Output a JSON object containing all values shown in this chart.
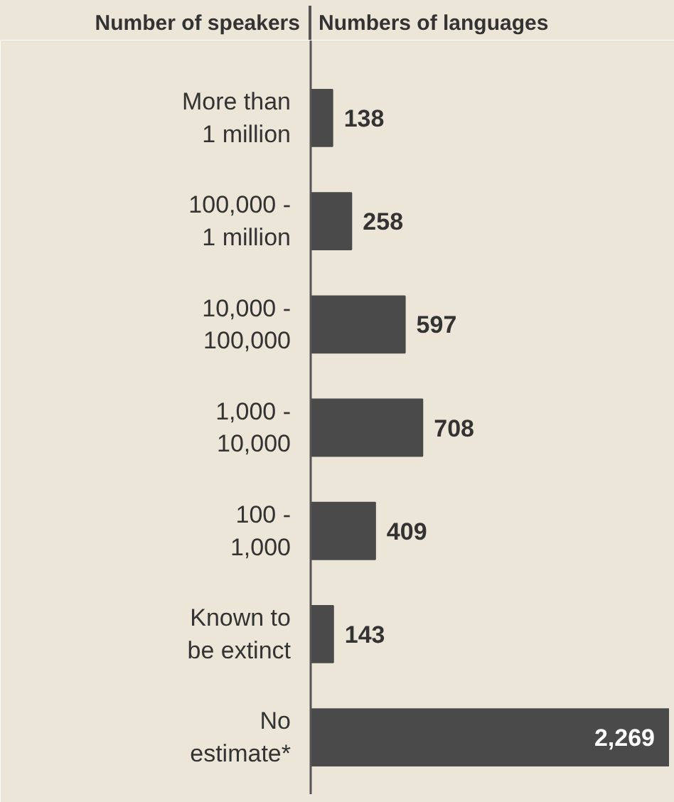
{
  "chart_data": {
    "type": "bar",
    "orientation": "horizontal",
    "ylabel": "Number of speakers",
    "xlabel": "Numbers of languages",
    "categories": [
      "More than\n1 million",
      "100,000 -\n1 million",
      "10,000 -\n100,000",
      "1,000 -\n10,000",
      "100 -\n1,000",
      "Known to\nbe extinct",
      "No\nestimate*"
    ],
    "values": [
      138,
      258,
      597,
      708,
      409,
      143,
      2269
    ],
    "value_labels": [
      "138",
      "258",
      "597",
      "708",
      "409",
      "143",
      "2,269"
    ],
    "color": "#4a4a4a",
    "grid": false
  }
}
